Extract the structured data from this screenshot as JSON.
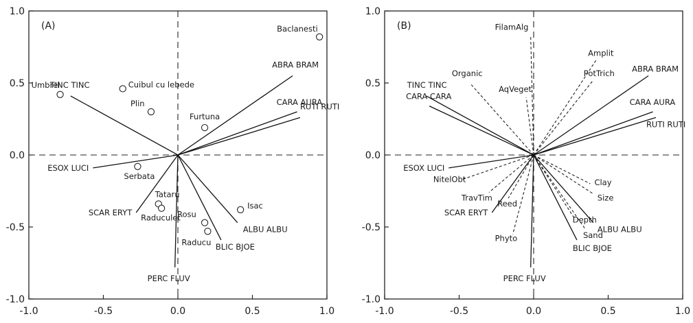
{
  "chart_data": [
    {
      "type": "scatter",
      "panel_label": "(A)",
      "xlim": [
        -1.0,
        1.0
      ],
      "ylim": [
        -1.0,
        1.0
      ],
      "x_ticks": [
        "-1.0",
        "-0.5",
        "0.0",
        "0.5",
        "1.0"
      ],
      "y_ticks": [
        "1.0",
        "0.5",
        "0.0",
        "-0.5",
        "-1.0"
      ],
      "grid": false,
      "species_vectors": [
        {
          "label": "ABRA BRAM",
          "x": 0.77,
          "y": 0.55
        },
        {
          "label": "CARA AURA",
          "x": 0.8,
          "y": 0.3
        },
        {
          "label": "RUTI RUTI",
          "x": 0.82,
          "y": 0.26
        },
        {
          "label": "TINC TINC",
          "x": -0.72,
          "y": 0.41
        },
        {
          "label": "ESOX LUCI",
          "x": -0.57,
          "y": -0.09
        },
        {
          "label": "SCAR ERYT",
          "x": -0.28,
          "y": -0.4
        },
        {
          "label": "PERC FLUV",
          "x": -0.02,
          "y": -0.78
        },
        {
          "label": "BLIC BJOE",
          "x": 0.29,
          "y": -0.59
        },
        {
          "label": "ALBU ALBU",
          "x": 0.4,
          "y": -0.47
        }
      ],
      "sites": [
        {
          "label": "Baclanesti",
          "x": 0.95,
          "y": 0.82
        },
        {
          "label": "Umbrei",
          "x": -0.79,
          "y": 0.42
        },
        {
          "label": "Cuibul cu lebede",
          "x": -0.37,
          "y": 0.46
        },
        {
          "label": "Plin",
          "x": -0.18,
          "y": 0.3
        },
        {
          "label": "Furtuna",
          "x": 0.18,
          "y": 0.19
        },
        {
          "label": "Serbata",
          "x": -0.27,
          "y": -0.08
        },
        {
          "label": "Tataru",
          "x": -0.13,
          "y": -0.34
        },
        {
          "label": "Raduculet",
          "x": -0.11,
          "y": -0.37
        },
        {
          "label": "Rosu",
          "x": 0.18,
          "y": -0.47
        },
        {
          "label": "Raducu",
          "x": 0.2,
          "y": -0.53
        },
        {
          "label": "Isac",
          "x": 0.42,
          "y": -0.38
        }
      ]
    },
    {
      "type": "scatter",
      "panel_label": "(B)",
      "xlim": [
        -1.0,
        1.0
      ],
      "ylim": [
        -1.0,
        1.0
      ],
      "x_ticks": [
        "-1.0",
        "-0.5",
        "0.0",
        "0.5",
        "1.0"
      ],
      "y_ticks": [
        "1.0",
        "0.5",
        "0.0",
        "-0.5",
        "-1.0"
      ],
      "grid": false,
      "species_vectors": [
        {
          "label": "TINC TINC",
          "x": -0.72,
          "y": 0.41
        },
        {
          "label": "CARA CARA",
          "x": -0.7,
          "y": 0.34
        },
        {
          "label": "ABRA BRAM",
          "x": 0.77,
          "y": 0.55
        },
        {
          "label": "CARA AURA",
          "x": 0.8,
          "y": 0.3
        },
        {
          "label": "RUTI RUTI",
          "x": 0.82,
          "y": 0.26
        },
        {
          "label": "ESOX LUCI",
          "x": -0.57,
          "y": -0.09
        },
        {
          "label": "SCAR ERYT",
          "x": -0.28,
          "y": -0.4
        },
        {
          "label": "PERC FLUV",
          "x": -0.02,
          "y": -0.78
        },
        {
          "label": "BLIC BJOE",
          "x": 0.29,
          "y": -0.59
        },
        {
          "label": "ALBU ALBU",
          "x": 0.4,
          "y": -0.47
        }
      ],
      "environmental_vectors": [
        {
          "label": "FilamAlg",
          "x": -0.02,
          "y": 0.83
        },
        {
          "label": "Amplit",
          "x": 0.42,
          "y": 0.66
        },
        {
          "label": "PotTrich",
          "x": 0.4,
          "y": 0.52
        },
        {
          "label": "Organic",
          "x": -0.42,
          "y": 0.49
        },
        {
          "label": "AqVeget",
          "x": -0.05,
          "y": 0.4
        },
        {
          "label": "NitelObt",
          "x": -0.48,
          "y": -0.17
        },
        {
          "label": "TravTim",
          "x": -0.3,
          "y": -0.26
        },
        {
          "label": "Reed",
          "x": -0.17,
          "y": -0.3
        },
        {
          "label": "Phyto",
          "x": -0.14,
          "y": -0.55
        },
        {
          "label": "Clay",
          "x": 0.38,
          "y": -0.2
        },
        {
          "label": "Size",
          "x": 0.4,
          "y": -0.27
        },
        {
          "label": "Depth",
          "x": 0.28,
          "y": -0.45
        },
        {
          "label": "Sand",
          "x": 0.35,
          "y": -0.52
        }
      ]
    }
  ]
}
